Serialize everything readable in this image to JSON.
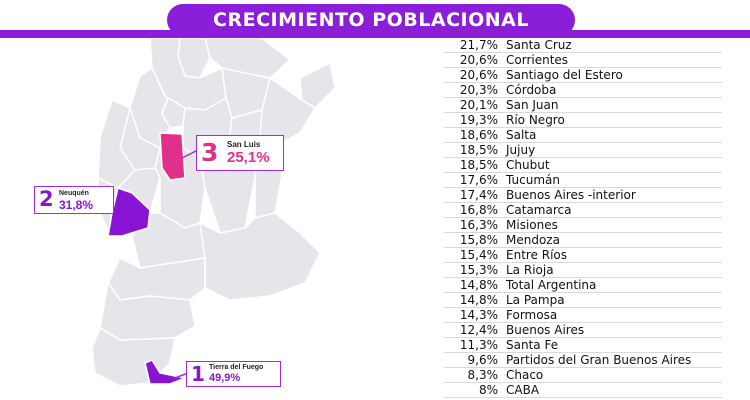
{
  "title": "CRECIMIENTO POBLACIONAL",
  "colors": {
    "accent": "#8b1ed8",
    "highlight_pink": "#e0308a",
    "highlight_purple": "#8a14d4",
    "map_gray": "#e6e6ea"
  },
  "callouts": [
    {
      "rank": "3",
      "name": "San Luis",
      "value": "25,1%"
    },
    {
      "rank": "2",
      "name": "Neuquén",
      "value": "31,8%"
    },
    {
      "rank": "1",
      "name": "Tierra del Fuego",
      "value": "49,9%"
    }
  ],
  "ranking": [
    {
      "pct": "21,7%",
      "name": "Santa Cruz"
    },
    {
      "pct": "20,6%",
      "name": "Corrientes"
    },
    {
      "pct": "20,6%",
      "name": "Santiago del Estero"
    },
    {
      "pct": "20,3%",
      "name": "Córdoba"
    },
    {
      "pct": "20,1%",
      "name": "San Juan"
    },
    {
      "pct": "19,3%",
      "name": "Río Negro"
    },
    {
      "pct": "18,6%",
      "name": "Salta"
    },
    {
      "pct": "18,5%",
      "name": "Jujuy"
    },
    {
      "pct": "18,5%",
      "name": "Chubut"
    },
    {
      "pct": "17,6%",
      "name": "Tucumán"
    },
    {
      "pct": "17,4%",
      "name": "Buenos Aires -interior"
    },
    {
      "pct": "16,8%",
      "name": "Catamarca"
    },
    {
      "pct": "16,3%",
      "name": "Misiones"
    },
    {
      "pct": "15,8%",
      "name": "Mendoza"
    },
    {
      "pct": "15,4%",
      "name": "Entre Ríos"
    },
    {
      "pct": "15,3%",
      "name": "La Rioja"
    },
    {
      "pct": "14,8%",
      "name": "Total Argentina"
    },
    {
      "pct": "14,8%",
      "name": "La Pampa"
    },
    {
      "pct": "14,3%",
      "name": "Formosa"
    },
    {
      "pct": "12,4%",
      "name": "Buenos Aires"
    },
    {
      "pct": "11,3%",
      "name": "Santa Fe"
    },
    {
      "pct": "9,6%",
      "name": "Partidos del Gran Buenos Aires"
    },
    {
      "pct": "8,3%",
      "name": "Chaco"
    },
    {
      "pct": "8%",
      "name": "CABA"
    }
  ]
}
